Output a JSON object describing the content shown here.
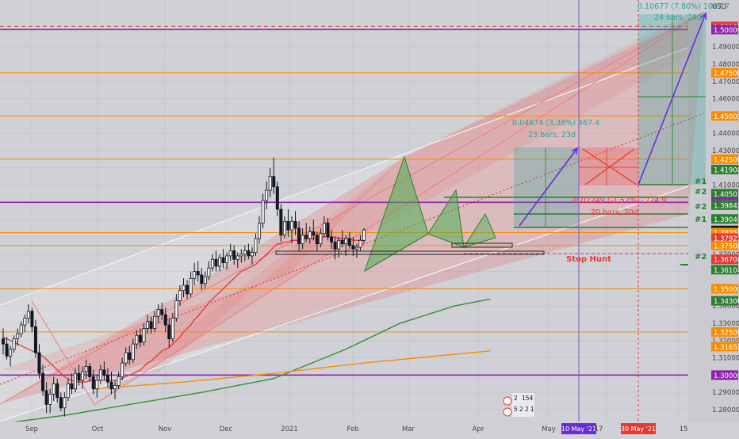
{
  "chart_data": {
    "type": "candlestick",
    "instrument_currency": "USD",
    "x_axis": {
      "labels": [
        "Sep",
        "Oct",
        "Nov",
        "Dec",
        "2021",
        "Feb",
        "Mar",
        "Apr",
        "May",
        "10 May '21",
        "17",
        "30 May '21",
        "15"
      ],
      "highlighted": [
        "10 May '21",
        "30 May '21"
      ]
    },
    "y_axis": {
      "range": [
        1.272,
        1.512
      ],
      "ticks": [
        1.28,
        1.29,
        1.3,
        1.31,
        1.32,
        1.33,
        1.34,
        1.35,
        1.36,
        1.37,
        1.38,
        1.39,
        1.4,
        1.41,
        1.42,
        1.43,
        1.44,
        1.45,
        1.46,
        1.47,
        1.48,
        1.49,
        1.5
      ]
    },
    "price_labels": [
      {
        "value": "1.50187",
        "color": "#e53935"
      },
      {
        "value": "1.50000",
        "color": "#8e24aa"
      },
      {
        "value": "1.47500",
        "color": "#fb8c00"
      },
      {
        "value": "1.45000",
        "color": "#fb8c00"
      },
      {
        "value": "1.42500",
        "color": "#fb8c00"
      },
      {
        "value": "1.41900",
        "color": "#2e7d32"
      },
      {
        "value": "1.40501",
        "color": "#2e7d32"
      },
      {
        "value": "1.40000",
        "color": "#8e24aa"
      },
      {
        "value": "1.39842",
        "color": "#2e7d32"
      },
      {
        "value": "1.39040",
        "color": "#2e7d32"
      },
      {
        "value": "1.38376",
        "color": "#131722"
      },
      {
        "value": "1.38250",
        "color": "#fb8c00"
      },
      {
        "value": "1.37927",
        "color": "#e53935"
      },
      {
        "value": "1.37500",
        "color": "#fb8c00"
      },
      {
        "value": "1.36704",
        "color": "#e53935"
      },
      {
        "value": "1.36104",
        "color": "#2e7d32"
      },
      {
        "value": "1.35000",
        "color": "#fb8c00"
      },
      {
        "value": "1.34300",
        "color": "#2e7d32"
      },
      {
        "value": "1.32500",
        "color": "#fb8c00"
      },
      {
        "value": "1.31653",
        "color": "#fb8c00"
      },
      {
        "value": "1.30000",
        "color": "#8e24aa"
      }
    ],
    "horizontal_levels": [
      {
        "value": 1.5019,
        "color": "#e53935",
        "style": "dashed"
      },
      {
        "value": 1.5,
        "color": "#8e24aa"
      },
      {
        "value": 1.475,
        "color": "#fb8c00"
      },
      {
        "value": 1.45,
        "color": "#fb8c00"
      },
      {
        "value": 1.425,
        "color": "#fb8c00"
      },
      {
        "value": 1.4,
        "color": "#8e24aa"
      },
      {
        "value": 1.3825,
        "color": "#fb8c00"
      },
      {
        "value": 1.375,
        "color": "#fb8c00"
      },
      {
        "value": 1.35,
        "color": "#fb8c00"
      },
      {
        "value": 1.325,
        "color": "#fb8c00"
      },
      {
        "value": 1.3,
        "color": "#8e24aa"
      }
    ],
    "annotations": [
      {
        "text": "0.10677 (7.80%) 1067.7",
        "color": "#26a69a"
      },
      {
        "text": "24 bars, 24d",
        "color": "#26a69a"
      },
      {
        "text": "0.04674 (3.38%) 467.4",
        "color": "#26a69a"
      },
      {
        "text": "23 bars, 23d",
        "color": "#26a69a"
      },
      {
        "text": "-0.02249 (-1.57%) -224.9",
        "color": "#e53935"
      },
      {
        "text": "20 bars, 20d",
        "color": "#e53935"
      },
      {
        "text": "Stop Hunt",
        "color": "#e53935"
      },
      {
        "text": "#1",
        "color": "#2e7d32"
      },
      {
        "text": "#2",
        "color": "#2e7d32"
      },
      {
        "text": "#2",
        "color": "#2e7d32"
      },
      {
        "text": "#1",
        "color": "#2e7d32"
      },
      {
        "text": "#2",
        "color": "#2e7d32"
      }
    ],
    "events_badge": [
      "2",
      "154",
      "5",
      "2",
      "2",
      "1"
    ],
    "candles": [
      {
        "o": 1.321,
        "h": 1.327,
        "l": 1.312,
        "c": 1.318
      },
      {
        "o": 1.318,
        "h": 1.322,
        "l": 1.309,
        "c": 1.311
      },
      {
        "o": 1.311,
        "h": 1.317,
        "l": 1.305,
        "c": 1.315
      },
      {
        "o": 1.315,
        "h": 1.323,
        "l": 1.313,
        "c": 1.321
      },
      {
        "o": 1.321,
        "h": 1.327,
        "l": 1.317,
        "c": 1.324
      },
      {
        "o": 1.324,
        "h": 1.331,
        "l": 1.322,
        "c": 1.329
      },
      {
        "o": 1.329,
        "h": 1.335,
        "l": 1.325,
        "c": 1.333
      },
      {
        "o": 1.333,
        "h": 1.341,
        "l": 1.33,
        "c": 1.337
      },
      {
        "o": 1.337,
        "h": 1.339,
        "l": 1.325,
        "c": 1.328
      },
      {
        "o": 1.328,
        "h": 1.332,
        "l": 1.31,
        "c": 1.313
      },
      {
        "o": 1.313,
        "h": 1.318,
        "l": 1.298,
        "c": 1.301
      },
      {
        "o": 1.301,
        "h": 1.306,
        "l": 1.288,
        "c": 1.291
      },
      {
        "o": 1.291,
        "h": 1.296,
        "l": 1.278,
        "c": 1.283
      },
      {
        "o": 1.283,
        "h": 1.292,
        "l": 1.278,
        "c": 1.289
      },
      {
        "o": 1.289,
        "h": 1.299,
        "l": 1.285,
        "c": 1.295
      },
      {
        "o": 1.295,
        "h": 1.298,
        "l": 1.284,
        "c": 1.287
      },
      {
        "o": 1.287,
        "h": 1.29,
        "l": 1.279,
        "c": 1.281
      },
      {
        "o": 1.281,
        "h": 1.29,
        "l": 1.276,
        "c": 1.287
      },
      {
        "o": 1.287,
        "h": 1.298,
        "l": 1.285,
        "c": 1.295
      },
      {
        "o": 1.295,
        "h": 1.301,
        "l": 1.289,
        "c": 1.292
      },
      {
        "o": 1.292,
        "h": 1.304,
        "l": 1.29,
        "c": 1.301
      },
      {
        "o": 1.301,
        "h": 1.306,
        "l": 1.294,
        "c": 1.297
      },
      {
        "o": 1.297,
        "h": 1.305,
        "l": 1.292,
        "c": 1.302
      },
      {
        "o": 1.302,
        "h": 1.309,
        "l": 1.298,
        "c": 1.305
      },
      {
        "o": 1.305,
        "h": 1.307,
        "l": 1.296,
        "c": 1.299
      },
      {
        "o": 1.299,
        "h": 1.303,
        "l": 1.289,
        "c": 1.292
      },
      {
        "o": 1.292,
        "h": 1.3,
        "l": 1.287,
        "c": 1.297
      },
      {
        "o": 1.297,
        "h": 1.306,
        "l": 1.295,
        "c": 1.303
      },
      {
        "o": 1.303,
        "h": 1.308,
        "l": 1.297,
        "c": 1.3
      },
      {
        "o": 1.3,
        "h": 1.304,
        "l": 1.293,
        "c": 1.296
      },
      {
        "o": 1.296,
        "h": 1.302,
        "l": 1.289,
        "c": 1.292
      },
      {
        "o": 1.292,
        "h": 1.297,
        "l": 1.286,
        "c": 1.294
      },
      {
        "o": 1.294,
        "h": 1.302,
        "l": 1.292,
        "c": 1.299
      },
      {
        "o": 1.299,
        "h": 1.31,
        "l": 1.297,
        "c": 1.307
      },
      {
        "o": 1.307,
        "h": 1.316,
        "l": 1.305,
        "c": 1.313
      },
      {
        "o": 1.313,
        "h": 1.317,
        "l": 1.306,
        "c": 1.309
      },
      {
        "o": 1.309,
        "h": 1.321,
        "l": 1.307,
        "c": 1.318
      },
      {
        "o": 1.318,
        "h": 1.326,
        "l": 1.315,
        "c": 1.323
      },
      {
        "o": 1.323,
        "h": 1.327,
        "l": 1.316,
        "c": 1.319
      },
      {
        "o": 1.319,
        "h": 1.33,
        "l": 1.317,
        "c": 1.327
      },
      {
        "o": 1.327,
        "h": 1.335,
        "l": 1.324,
        "c": 1.331
      },
      {
        "o": 1.331,
        "h": 1.334,
        "l": 1.324,
        "c": 1.327
      },
      {
        "o": 1.327,
        "h": 1.337,
        "l": 1.325,
        "c": 1.334
      },
      {
        "o": 1.334,
        "h": 1.341,
        "l": 1.33,
        "c": 1.338
      },
      {
        "o": 1.338,
        "h": 1.342,
        "l": 1.332,
        "c": 1.335
      },
      {
        "o": 1.335,
        "h": 1.339,
        "l": 1.325,
        "c": 1.329
      },
      {
        "o": 1.329,
        "h": 1.333,
        "l": 1.316,
        "c": 1.321
      },
      {
        "o": 1.321,
        "h": 1.336,
        "l": 1.319,
        "c": 1.333
      },
      {
        "o": 1.333,
        "h": 1.347,
        "l": 1.331,
        "c": 1.343
      },
      {
        "o": 1.343,
        "h": 1.352,
        "l": 1.34,
        "c": 1.349
      },
      {
        "o": 1.349,
        "h": 1.356,
        "l": 1.345,
        "c": 1.352
      },
      {
        "o": 1.352,
        "h": 1.355,
        "l": 1.344,
        "c": 1.347
      },
      {
        "o": 1.347,
        "h": 1.36,
        "l": 1.345,
        "c": 1.356
      },
      {
        "o": 1.356,
        "h": 1.365,
        "l": 1.352,
        "c": 1.36
      },
      {
        "o": 1.36,
        "h": 1.366,
        "l": 1.354,
        "c": 1.358
      },
      {
        "o": 1.358,
        "h": 1.362,
        "l": 1.349,
        "c": 1.353
      },
      {
        "o": 1.353,
        "h": 1.36,
        "l": 1.35,
        "c": 1.357
      },
      {
        "o": 1.357,
        "h": 1.366,
        "l": 1.355,
        "c": 1.362
      },
      {
        "o": 1.362,
        "h": 1.37,
        "l": 1.36,
        "c": 1.367
      },
      {
        "o": 1.367,
        "h": 1.372,
        "l": 1.36,
        "c": 1.363
      },
      {
        "o": 1.363,
        "h": 1.37,
        "l": 1.36,
        "c": 1.368
      },
      {
        "o": 1.368,
        "h": 1.373,
        "l": 1.362,
        "c": 1.365
      },
      {
        "o": 1.365,
        "h": 1.371,
        "l": 1.361,
        "c": 1.369
      },
      {
        "o": 1.369,
        "h": 1.376,
        "l": 1.366,
        "c": 1.372
      },
      {
        "o": 1.372,
        "h": 1.375,
        "l": 1.364,
        "c": 1.367
      },
      {
        "o": 1.367,
        "h": 1.371,
        "l": 1.362,
        "c": 1.369
      },
      {
        "o": 1.369,
        "h": 1.373,
        "l": 1.365,
        "c": 1.37
      },
      {
        "o": 1.37,
        "h": 1.375,
        "l": 1.366,
        "c": 1.372
      },
      {
        "o": 1.372,
        "h": 1.376,
        "l": 1.367,
        "c": 1.369
      },
      {
        "o": 1.369,
        "h": 1.374,
        "l": 1.364,
        "c": 1.371
      },
      {
        "o": 1.371,
        "h": 1.382,
        "l": 1.369,
        "c": 1.379
      },
      {
        "o": 1.379,
        "h": 1.392,
        "l": 1.376,
        "c": 1.388
      },
      {
        "o": 1.388,
        "h": 1.405,
        "l": 1.385,
        "c": 1.401
      },
      {
        "o": 1.401,
        "h": 1.412,
        "l": 1.396,
        "c": 1.407
      },
      {
        "o": 1.407,
        "h": 1.42,
        "l": 1.403,
        "c": 1.415
      },
      {
        "o": 1.415,
        "h": 1.426,
        "l": 1.405,
        "c": 1.409
      },
      {
        "o": 1.409,
        "h": 1.412,
        "l": 1.392,
        "c": 1.396
      },
      {
        "o": 1.396,
        "h": 1.399,
        "l": 1.377,
        "c": 1.381
      },
      {
        "o": 1.381,
        "h": 1.392,
        "l": 1.379,
        "c": 1.389
      },
      {
        "o": 1.389,
        "h": 1.396,
        "l": 1.38,
        "c": 1.384
      },
      {
        "o": 1.384,
        "h": 1.392,
        "l": 1.376,
        "c": 1.389
      },
      {
        "o": 1.389,
        "h": 1.395,
        "l": 1.381,
        "c": 1.385
      },
      {
        "o": 1.385,
        "h": 1.389,
        "l": 1.372,
        "c": 1.376
      },
      {
        "o": 1.376,
        "h": 1.385,
        "l": 1.373,
        "c": 1.381
      },
      {
        "o": 1.381,
        "h": 1.388,
        "l": 1.377,
        "c": 1.379
      },
      {
        "o": 1.379,
        "h": 1.386,
        "l": 1.376,
        "c": 1.383
      },
      {
        "o": 1.383,
        "h": 1.39,
        "l": 1.378,
        "c": 1.381
      },
      {
        "o": 1.381,
        "h": 1.383,
        "l": 1.372,
        "c": 1.376
      },
      {
        "o": 1.376,
        "h": 1.385,
        "l": 1.374,
        "c": 1.382
      },
      {
        "o": 1.382,
        "h": 1.392,
        "l": 1.38,
        "c": 1.388
      },
      {
        "o": 1.388,
        "h": 1.391,
        "l": 1.378,
        "c": 1.38
      },
      {
        "o": 1.38,
        "h": 1.384,
        "l": 1.373,
        "c": 1.377
      },
      {
        "o": 1.377,
        "h": 1.38,
        "l": 1.367,
        "c": 1.373
      },
      {
        "o": 1.373,
        "h": 1.38,
        "l": 1.368,
        "c": 1.378
      },
      {
        "o": 1.378,
        "h": 1.384,
        "l": 1.374,
        "c": 1.376
      },
      {
        "o": 1.376,
        "h": 1.381,
        "l": 1.369,
        "c": 1.379
      },
      {
        "o": 1.379,
        "h": 1.383,
        "l": 1.373,
        "c": 1.375
      },
      {
        "o": 1.375,
        "h": 1.38,
        "l": 1.369,
        "c": 1.373
      },
      {
        "o": 1.373,
        "h": 1.376,
        "l": 1.368,
        "c": 1.374
      },
      {
        "o": 1.374,
        "h": 1.381,
        "l": 1.372,
        "c": 1.378
      },
      {
        "o": 1.378,
        "h": 1.385,
        "l": 1.376,
        "c": 1.384
      }
    ],
    "sma_red": [
      1.322,
      1.321,
      1.32,
      1.319,
      1.318,
      1.317,
      1.316,
      1.315,
      1.314,
      1.313,
      1.312,
      1.311,
      1.309,
      1.307,
      1.305,
      1.303,
      1.301,
      1.299,
      1.298,
      1.297,
      1.296,
      1.296,
      1.296,
      1.296,
      1.297,
      1.297,
      1.297,
      1.297,
      1.297,
      1.297,
      1.297,
      1.297,
      1.297,
      1.298,
      1.299,
      1.3,
      1.301,
      1.302,
      1.303,
      1.305,
      1.307,
      1.308,
      1.31,
      1.312,
      1.314,
      1.315,
      1.316,
      1.318,
      1.32,
      1.322,
      1.325,
      1.327,
      1.329,
      1.332,
      1.334,
      1.337,
      1.339,
      1.342,
      1.344,
      1.346,
      1.348,
      1.35,
      1.352,
      1.354,
      1.356,
      1.358,
      1.36,
      1.361,
      1.362,
      1.363,
      1.364,
      1.366,
      1.368,
      1.37,
      1.372,
      1.374,
      1.376,
      1.376,
      1.377,
      1.377,
      1.378,
      1.378,
      1.378,
      1.379,
      1.379,
      1.379,
      1.379,
      1.379,
      1.379,
      1.38,
      1.38,
      1.38,
      1.38,
      1.379,
      1.379,
      1.379,
      1.379,
      1.378,
      1.378,
      1.378,
      1.378
    ],
    "sma_green": [
      [
        0,
        1.272
      ],
      [
        18,
        1.277
      ],
      [
        35,
        1.283
      ],
      [
        55,
        1.29
      ],
      [
        75,
        1.298
      ],
      [
        95,
        1.315
      ],
      [
        110,
        1.33
      ],
      [
        125,
        1.34
      ],
      [
        135,
        1.344
      ]
    ],
    "sma_orange": [
      [
        25,
        1.292
      ],
      [
        50,
        1.296
      ],
      [
        75,
        1.301
      ],
      [
        100,
        1.307
      ],
      [
        120,
        1.311
      ],
      [
        135,
        1.314
      ]
    ]
  }
}
